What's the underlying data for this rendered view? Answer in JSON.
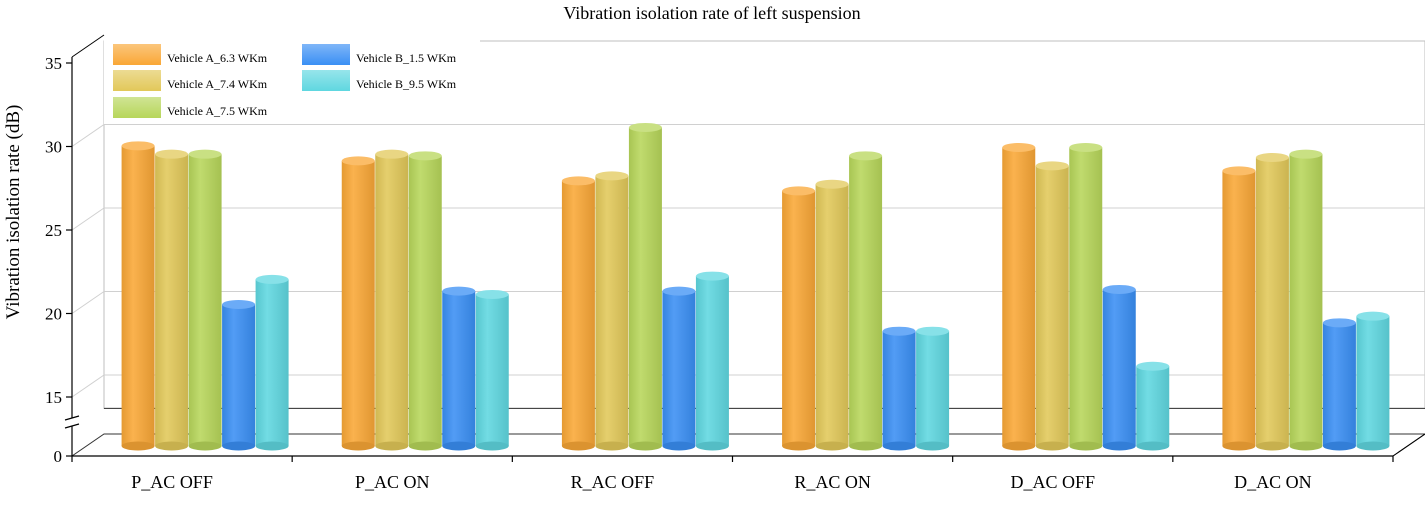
{
  "chart_data": {
    "type": "bar",
    "title": "Vibration isolation rate of left suspension",
    "xlabel": "",
    "ylabel": "Vibration isolation rate (dB)",
    "ylim": [
      13,
      35
    ],
    "axis_break": true,
    "y_ticks": [
      0,
      15,
      20,
      25,
      30,
      35
    ],
    "y_tick_labels": [
      "0",
      "15",
      "20",
      "25",
      "30",
      "35"
    ],
    "grid": true,
    "legend_position": "top-left",
    "categories": [
      "P_AC OFF",
      "P_AC ON",
      "R_AC OFF",
      "R_AC ON",
      "D_AC OFF",
      "D_AC ON"
    ],
    "series": [
      {
        "name": "Vehicle A_6.3 WKm",
        "color": "#f9a736",
        "values": [
          30.4,
          29.5,
          28.3,
          27.7,
          30.3,
          28.9
        ]
      },
      {
        "name": "Vehicle A_7.4 WKm",
        "color": "#e2c859",
        "values": [
          29.9,
          29.9,
          28.6,
          28.1,
          29.2,
          29.7
        ]
      },
      {
        "name": "Vehicle A_7.5 WKm",
        "color": "#b7d65a",
        "values": [
          29.9,
          29.8,
          31.5,
          29.8,
          30.3,
          29.9
        ]
      },
      {
        "name": "Vehicle B_1.5 WKm",
        "color": "#3a8ff4",
        "values": [
          20.9,
          21.7,
          21.7,
          19.3,
          21.8,
          19.8
        ]
      },
      {
        "name": "Vehicle B_9.5 WKm",
        "color": "#5fd7e0",
        "values": [
          22.4,
          21.5,
          22.6,
          19.3,
          17.2,
          20.2
        ]
      }
    ]
  }
}
